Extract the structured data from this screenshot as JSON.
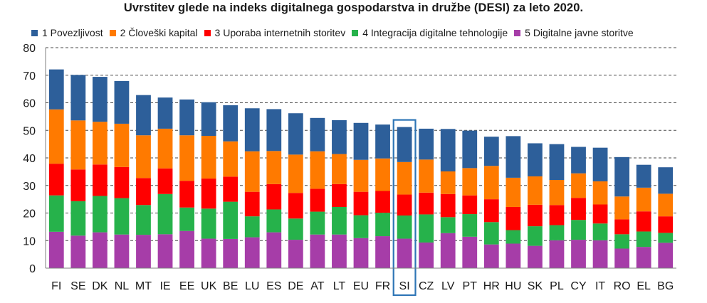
{
  "chart_data": {
    "type": "bar",
    "stacked": true,
    "title": "Uvrstitev glede na indeks digitalnega gospodarstva in družbe (DESI) za leto 2020.",
    "xlabel": "",
    "ylabel": "",
    "ylim": [
      0,
      80
    ],
    "yticks": [
      0,
      10,
      20,
      30,
      40,
      50,
      60,
      70,
      80
    ],
    "grid": true,
    "legend_position": "top",
    "highlighted_category": "SI",
    "categories": [
      "FI",
      "SE",
      "DK",
      "NL",
      "MT",
      "IE",
      "EE",
      "UK",
      "BE",
      "LU",
      "ES",
      "DE",
      "AT",
      "LT",
      "EU",
      "FR",
      "SI",
      "CZ",
      "LV",
      "PT",
      "HR",
      "HU",
      "SK",
      "PL",
      "CY",
      "IT",
      "RO",
      "EL",
      "BG"
    ],
    "series": [
      {
        "name": "5 Digitalne javne storitve",
        "color": "#A63DA8",
        "values": [
          13.2,
          11.8,
          13.0,
          12.2,
          12.1,
          12.3,
          13.5,
          10.7,
          10.6,
          11.2,
          13.0,
          10.3,
          12.2,
          12.2,
          10.9,
          11.6,
          10.7,
          9.3,
          12.7,
          11.4,
          8.6,
          8.9,
          8.1,
          10.1,
          10.3,
          10.1,
          7.1,
          7.7,
          9.2
        ]
      },
      {
        "name": "4 Integracija digitalne tehnologije",
        "color": "#26B24B",
        "values": [
          13.2,
          12.5,
          13.2,
          13.2,
          10.8,
          14.6,
          8.5,
          10.9,
          13.5,
          7.6,
          8.3,
          7.7,
          8.3,
          10.0,
          8.3,
          8.5,
          8.4,
          10.2,
          5.8,
          8.2,
          8.1,
          4.9,
          7.1,
          5.5,
          7.2,
          6.1,
          5.2,
          5.6,
          3.6
        ]
      },
      {
        "name": "3 Uporaba internetnih storitev",
        "color": "#FF0000",
        "values": [
          11.5,
          11.5,
          11.4,
          11.3,
          9.8,
          9.3,
          9.7,
          10.9,
          9.1,
          8.9,
          9.2,
          9.3,
          8.3,
          8.3,
          8.5,
          7.9,
          7.6,
          7.9,
          8.4,
          6.8,
          8.3,
          8.4,
          7.8,
          7.3,
          8.0,
          6.9,
          5.4,
          7.3,
          6.0
        ]
      },
      {
        "name": "2 Človeški kapital",
        "color": "#FF7A00",
        "values": [
          19.7,
          17.8,
          15.5,
          15.7,
          15.5,
          14.4,
          16.5,
          15.5,
          12.8,
          14.7,
          12.0,
          13.9,
          13.6,
          10.9,
          11.6,
          11.8,
          11.8,
          12.0,
          8.2,
          9.9,
          12.1,
          10.6,
          10.3,
          9.1,
          8.9,
          8.4,
          8.3,
          8.6,
          8.2
        ]
      },
      {
        "name": "1 Povezljivost",
        "color": "#2D5F9A",
        "values": [
          14.5,
          16.5,
          16.3,
          15.5,
          14.6,
          11.3,
          13.0,
          12.2,
          13.1,
          15.6,
          15.2,
          15.0,
          12.1,
          12.3,
          13.4,
          12.3,
          12.7,
          11.2,
          15.4,
          13.6,
          10.6,
          15.1,
          12.0,
          13.0,
          9.6,
          12.2,
          14.3,
          8.3,
          9.6
        ]
      }
    ]
  }
}
